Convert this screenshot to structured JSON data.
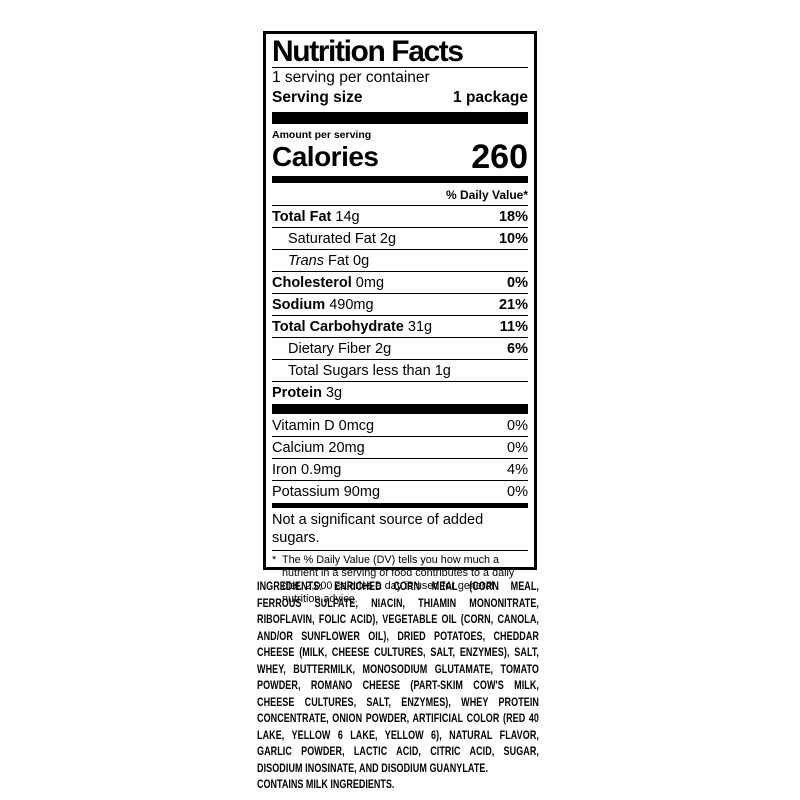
{
  "label": {
    "title": "Nutrition Facts",
    "servings_per_container": "1 serving per container",
    "serving_size_label": "Serving size",
    "serving_size_value": "1 package",
    "amount_per_serving": "Amount per serving",
    "calories_label": "Calories",
    "calories_value": "260",
    "daily_value_header": "% Daily Value*",
    "nutrients": [
      {
        "name": "Total Fat",
        "amount": "14g",
        "dv": "18%"
      },
      {
        "name": "Saturated Fat",
        "amount": "2g",
        "dv": "10%"
      },
      {
        "name": "Trans",
        "amount": "Fat 0g",
        "dv": ""
      },
      {
        "name": "Cholesterol",
        "amount": "0mg",
        "dv": "0%"
      },
      {
        "name": "Sodium",
        "amount": "490mg",
        "dv": "21%"
      },
      {
        "name": "Total Carbohydrate",
        "amount": "31g",
        "dv": "11%"
      },
      {
        "name": "Dietary Fiber",
        "amount": "2g",
        "dv": "6%"
      },
      {
        "name": "Total Sugars",
        "amount": "less than 1g",
        "dv": ""
      },
      {
        "name": "Protein",
        "amount": "3g",
        "dv": ""
      }
    ],
    "micronutrients": [
      {
        "name": "Vitamin D",
        "amount": "0mcg",
        "dv": "0%"
      },
      {
        "name": "Calcium",
        "amount": "20mg",
        "dv": "0%"
      },
      {
        "name": "Iron",
        "amount": "0.9mg",
        "dv": "4%"
      },
      {
        "name": "Potassium",
        "amount": "90mg",
        "dv": "0%"
      }
    ],
    "not_significant_note": "Not a significant source of added sugars.",
    "footnote_marker": "*",
    "footnote": "The % Daily Value (DV) tells you how much a nutrient in a serving of food contributes to a daily diet. 2,000 calories a day is used for general nutrition advice."
  },
  "ingredients": {
    "lead": "INGREDIENTS:",
    "text": "ENRICHED CORN MEAL (CORN MEAL, FERROUS SULFATE, NIACIN, THIAMIN MONONITRATE, RIBOFLAVIN, FOLIC ACID), VEGETABLE OIL (CORN, CANOLA, AND/OR SUNFLOWER OIL), DRIED POTATOES, CHEDDAR CHEESE (MILK, CHEESE CULTURES, SALT, ENZYMES), SALT, WHEY, BUTTERMILK, MONOSODIUM GLUTAMATE, TOMATO POWDER, ROMANO CHEESE (PART-SKIM COW'S MILK, CHEESE CULTURES, SALT, ENZYMES), WHEY PROTEIN CONCENTRATE, ONION POWDER, ARTIFICIAL COLOR (RED 40 LAKE, YELLOW 6 LAKE, YELLOW 6), NATURAL FLAVOR, GARLIC POWDER, LACTIC ACID, CITRIC ACID, SUGAR, DISODIUM INOSINATE, AND DISODIUM GUANYLATE.",
    "contains": "CONTAINS MILK INGREDIENTS."
  },
  "colors": {
    "ink": "#000000",
    "background": "#ffffff"
  }
}
